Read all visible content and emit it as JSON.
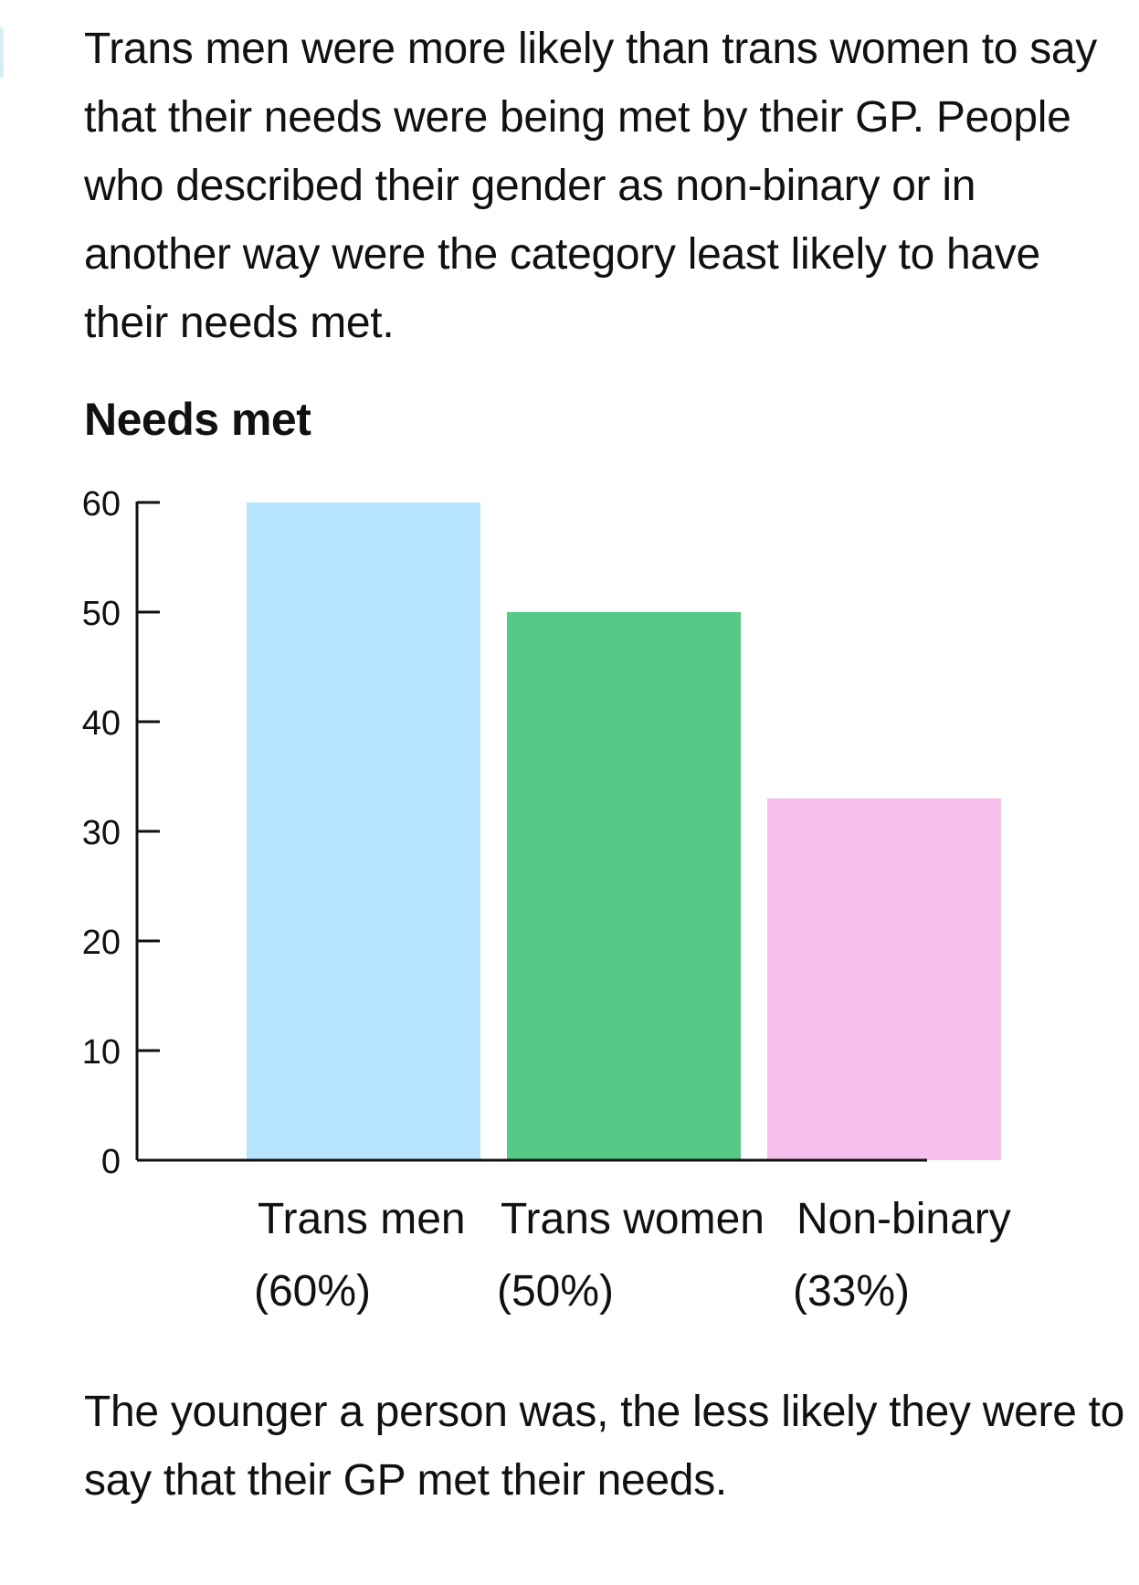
{
  "intro_text": "Trans men were more likely than trans women to say that their needs were being met by their GP. People who described their gender as non-binary or in another way were the category least likely to have their needs met.",
  "outro_text": "The younger a person was, the less likely they were to say that their GP met their needs.",
  "chart_data": {
    "type": "bar",
    "title": "Needs met",
    "categories": [
      "Trans men",
      "Trans women",
      "Non-binary"
    ],
    "category_value_labels": [
      "(60%)",
      "(50%)",
      "(33%)"
    ],
    "values": [
      60,
      50,
      33
    ],
    "colors": [
      "#b5e4fc",
      "#57c986",
      "#f7c0ec"
    ],
    "yticks": [
      0,
      10,
      20,
      30,
      40,
      50,
      60
    ],
    "ylim": [
      0,
      60
    ],
    "xlabel": "",
    "ylabel": "",
    "grid": false
  }
}
